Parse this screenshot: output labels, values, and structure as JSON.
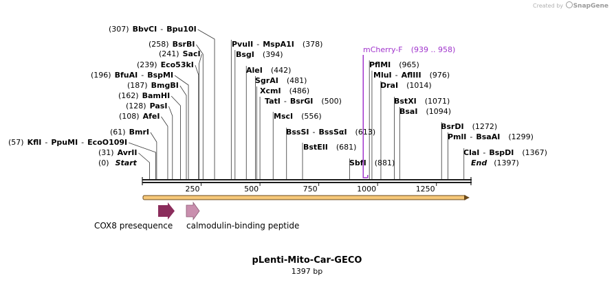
{
  "credit": {
    "prefix": "Created by",
    "brand": "SnapGene"
  },
  "map": {
    "name": "pLenti-Mito-Car-GECO",
    "length_label": "1397 bp",
    "length": 1397,
    "ticks": [
      "250",
      "500",
      "750",
      "1000",
      "1250"
    ],
    "tick_values": [
      250,
      500,
      750,
      1000,
      1250
    ],
    "start": {
      "pos": "(0)",
      "label": "Start"
    },
    "end": {
      "pos": "(1397)",
      "label": "End"
    },
    "sites": [
      {
        "pos": "(307)",
        "names": [
          "BbvCI",
          "Bpu10I"
        ],
        "bp": 307
      },
      {
        "pos": "(258)",
        "names": [
          "BsrBI"
        ],
        "bp": 258
      },
      {
        "pos": "(241)",
        "names": [
          "SacI"
        ],
        "bp": 241
      },
      {
        "pos": "(239)",
        "names": [
          "Eco53kI"
        ],
        "bp": 239
      },
      {
        "pos": "(196)",
        "names": [
          "BfuAI",
          "BspMI"
        ],
        "bp": 196
      },
      {
        "pos": "(187)",
        "names": [
          "BmgBI"
        ],
        "bp": 187
      },
      {
        "pos": "(162)",
        "names": [
          "BamHI"
        ],
        "bp": 162
      },
      {
        "pos": "(128)",
        "names": [
          "PasI"
        ],
        "bp": 128
      },
      {
        "pos": "(108)",
        "names": [
          "AfeI"
        ],
        "bp": 108
      },
      {
        "pos": "(61)",
        "names": [
          "BmrI"
        ],
        "bp": 61
      },
      {
        "pos": "(57)",
        "names": [
          "KflI",
          "PpuMI",
          "EcoO109I"
        ],
        "bp": 57
      },
      {
        "pos": "(31)",
        "names": [
          "AvrII"
        ],
        "bp": 31
      },
      {
        "pos": "(378)",
        "names": [
          "PvuII",
          "MspA1I"
        ],
        "bp": 378
      },
      {
        "pos": "(394)",
        "names": [
          "BsgI"
        ],
        "bp": 394
      },
      {
        "pos": "(442)",
        "names": [
          "AleI"
        ],
        "bp": 442
      },
      {
        "pos": "(481)",
        "names": [
          "SgrAI"
        ],
        "bp": 481
      },
      {
        "pos": "(486)",
        "names": [
          "XcmI"
        ],
        "bp": 486
      },
      {
        "pos": "(500)",
        "names": [
          "TatI",
          "BsrGI"
        ],
        "bp": 500
      },
      {
        "pos": "(556)",
        "names": [
          "MscI"
        ],
        "bp": 556
      },
      {
        "pos": "(613)",
        "names": [
          "BssSI",
          "BssSαI"
        ],
        "bp": 613
      },
      {
        "pos": "(681)",
        "names": [
          "BstEII"
        ],
        "bp": 681
      },
      {
        "pos": "(881)",
        "names": [
          "SbfI"
        ],
        "bp": 881
      },
      {
        "pos": "(965)",
        "names": [
          "PflMI"
        ],
        "bp": 965
      },
      {
        "pos": "(976)",
        "names": [
          "MluI",
          "AflIII"
        ],
        "bp": 976
      },
      {
        "pos": "(1014)",
        "names": [
          "DraI"
        ],
        "bp": 1014
      },
      {
        "pos": "(1071)",
        "names": [
          "BstXI"
        ],
        "bp": 1071
      },
      {
        "pos": "(1094)",
        "names": [
          "BsaI"
        ],
        "bp": 1094
      },
      {
        "pos": "(1272)",
        "names": [
          "BsrDI"
        ],
        "bp": 1272
      },
      {
        "pos": "(1299)",
        "names": [
          "PmlI",
          "BsaAI"
        ],
        "bp": 1299
      },
      {
        "pos": "(1367)",
        "names": [
          "ClaI",
          "BspDI"
        ],
        "bp": 1367
      }
    ],
    "primer": {
      "name": "mCherry-F",
      "range": "(939 .. 958)",
      "bp_start": 939,
      "bp_end": 958,
      "color": "#a033cc"
    },
    "features": [
      {
        "label": "COX8 presequence",
        "color": "#8b2d5c"
      },
      {
        "label": "calmodulin-binding peptide",
        "color": "#c98fae"
      }
    ],
    "colors": {
      "backbone": "#1a1a1a",
      "orf_fill": "#f6c879",
      "orf_stroke": "#6b4a1c"
    }
  }
}
